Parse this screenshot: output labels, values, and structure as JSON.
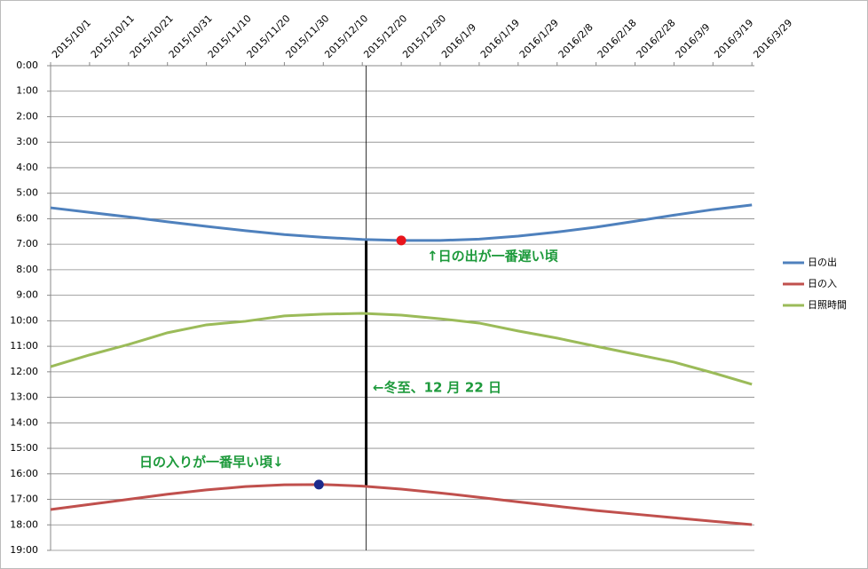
{
  "chart_data": {
    "type": "line",
    "categories": [
      "2015/10/1",
      "2015/10/11",
      "2015/10/21",
      "2015/10/31",
      "2015/11/10",
      "2015/11/20",
      "2015/11/30",
      "2015/12/10",
      "2015/12/20",
      "2015/12/30",
      "2016/1/9",
      "2016/1/19",
      "2016/1/29",
      "2016/2/8",
      "2016/2/18",
      "2016/2/28",
      "2016/3/9",
      "2016/3/19",
      "2016/3/29"
    ],
    "series": [
      {
        "name": "日の出",
        "color": "#4f81bd",
        "values": [
          5.57,
          5.75,
          5.93,
          6.12,
          6.3,
          6.47,
          6.62,
          6.73,
          6.81,
          6.85,
          6.85,
          6.8,
          6.68,
          6.52,
          6.33,
          6.1,
          5.86,
          5.64,
          5.46
        ]
      },
      {
        "name": "日の入",
        "color": "#c0504d",
        "values": [
          17.4,
          17.2,
          17.0,
          16.8,
          16.63,
          16.5,
          16.43,
          16.42,
          16.48,
          16.6,
          16.75,
          16.92,
          17.1,
          17.27,
          17.44,
          17.58,
          17.72,
          17.86,
          17.99
        ]
      },
      {
        "name": "日照時間",
        "color": "#9bbb59",
        "values": [
          11.8,
          11.34,
          10.93,
          10.47,
          10.16,
          10.02,
          9.81,
          9.74,
          9.71,
          9.78,
          9.92,
          10.09,
          10.4,
          10.68,
          11.0,
          11.31,
          11.62,
          12.04,
          12.49
        ]
      }
    ],
    "ylim": [
      0,
      19
    ],
    "y_inverted": true,
    "yticks": [
      {
        "value": 0,
        "label": "0:00"
      },
      {
        "value": 1,
        "label": "1:00"
      },
      {
        "value": 2,
        "label": "2:00"
      },
      {
        "value": 3,
        "label": "3:00"
      },
      {
        "value": 4,
        "label": "4:00"
      },
      {
        "value": 5,
        "label": "5:00"
      },
      {
        "value": 6,
        "label": "6:00"
      },
      {
        "value": 7,
        "label": "7:00"
      },
      {
        "value": 8,
        "label": "8:00"
      },
      {
        "value": 9,
        "label": "9:00"
      },
      {
        "value": 10,
        "label": "10:00"
      },
      {
        "value": 11,
        "label": "11:00"
      },
      {
        "value": 12,
        "label": "12:00"
      },
      {
        "value": 13,
        "label": "13:00"
      },
      {
        "value": 14,
        "label": "14:00"
      },
      {
        "value": 15,
        "label": "15:00"
      },
      {
        "value": 16,
        "label": "16:00"
      },
      {
        "value": 17,
        "label": "17:00"
      },
      {
        "value": 18,
        "label": "18:00"
      },
      {
        "value": 19,
        "label": "19:00"
      }
    ],
    "grid": true,
    "legend": "right",
    "annotations": [
      "↑日の出が一番遅い頃",
      "←冬至、12 月 22 日",
      "日の入りが一番早い頃↓"
    ]
  }
}
